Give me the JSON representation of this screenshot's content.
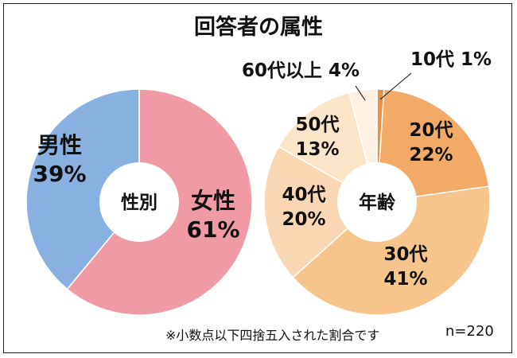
{
  "title": "回答者の属性",
  "footnote": "※小数点以下四捨五入された割合です",
  "sample_size": "n=220",
  "chart_data": [
    {
      "type": "pie",
      "donut": true,
      "center_label": "性別",
      "categories": [
        "女性",
        "男性"
      ],
      "values": [
        61,
        39
      ],
      "value_labels": [
        "61%",
        "39%"
      ],
      "colors": [
        "#f09aa6",
        "#88b1e1"
      ]
    },
    {
      "type": "pie",
      "donut": true,
      "center_label": "年齢",
      "categories": [
        "10代",
        "20代",
        "30代",
        "40代",
        "50代",
        "60代以上"
      ],
      "values": [
        1,
        22,
        41,
        20,
        13,
        4
      ],
      "value_labels": [
        "1%",
        "22%",
        "41%",
        "20%",
        "13%",
        "4%"
      ],
      "colors": [
        "#ea9243",
        "#f3aa66",
        "#f7c48b",
        "#f9d7b3",
        "#fbe5c8",
        "#fdf1e3"
      ]
    }
  ]
}
